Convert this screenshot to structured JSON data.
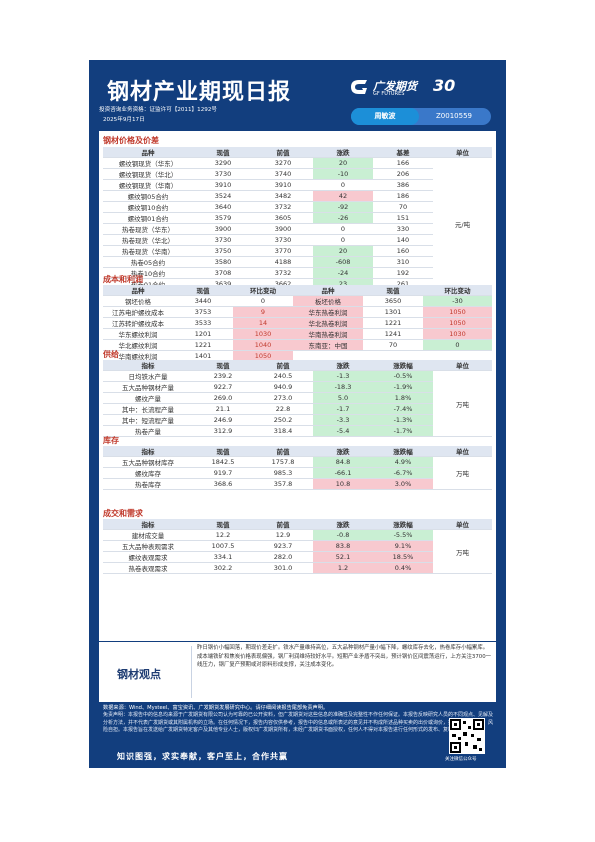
{
  "header": {
    "title": "钢材产业期现日报",
    "license_line": "投资咨询业务资格：证监许可【2011】1292号",
    "date": "2025年9月17日",
    "logo_cn": "广发期货",
    "logo_en": "GF FUTURES",
    "logo_badge": "30",
    "analyst": "周敏波",
    "analyst_id": "Z0010559"
  },
  "sections": {
    "prices": "钢材价格及价差",
    "cost": "成本和利润",
    "supply": "供给",
    "inventory": "库存",
    "demand": "成交和需求"
  },
  "prices": {
    "headers": [
      "品种",
      "现值",
      "前值",
      "涨跌",
      "基差",
      "单位"
    ],
    "unit": "元/吨",
    "rows": [
      {
        "name": "螺纹钢现货（华东）",
        "cur": "3290",
        "prev": "3270",
        "chg": "20",
        "basis": "166",
        "hl": "g"
      },
      {
        "name": "螺纹钢现货（华北）",
        "cur": "3730",
        "prev": "3740",
        "chg": "-10",
        "basis": "206",
        "hl": "g"
      },
      {
        "name": "螺纹钢现货（华南）",
        "cur": "3910",
        "prev": "3910",
        "chg": "0",
        "basis": "386",
        "hl": ""
      },
      {
        "name": "螺纹钢05合约",
        "cur": "3524",
        "prev": "3482",
        "chg": "42",
        "basis": "186",
        "hl": "r"
      },
      {
        "name": "螺纹钢10合约",
        "cur": "3640",
        "prev": "3732",
        "chg": "-92",
        "basis": "70",
        "hl": "g"
      },
      {
        "name": "螺纹钢01合约",
        "cur": "3579",
        "prev": "3605",
        "chg": "-26",
        "basis": "151",
        "hl": "g"
      },
      {
        "name": "热卷现货（华东）",
        "cur": "3900",
        "prev": "3900",
        "chg": "0",
        "basis": "330",
        "hl": ""
      },
      {
        "name": "热卷现货（华北）",
        "cur": "3730",
        "prev": "3730",
        "chg": "0",
        "basis": "140",
        "hl": ""
      },
      {
        "name": "热卷现货（华南）",
        "cur": "3750",
        "prev": "3770",
        "chg": "20",
        "basis": "160",
        "hl": "g"
      },
      {
        "name": "热卷05合约",
        "cur": "3580",
        "prev": "4188",
        "chg": "-608",
        "basis": "310",
        "hl": "g"
      },
      {
        "name": "热卷10合约",
        "cur": "3708",
        "prev": "3732",
        "chg": "-24",
        "basis": "192",
        "hl": "g"
      },
      {
        "name": "热卷01合约",
        "cur": "3639",
        "prev": "3662",
        "chg": "23",
        "basis": "261",
        "hl": "g"
      }
    ]
  },
  "cost": {
    "headers": [
      "品种",
      "现值",
      "环比变动",
      "品种",
      "现值",
      "环比变动"
    ],
    "rows": [
      {
        "a": "钢坯价格",
        "a_cur": "3440",
        "a_chg": "0",
        "a_hl": "",
        "b": "板坯价格",
        "b_cur": "3650",
        "b_chg": "-30",
        "b_hl": "g"
      },
      {
        "a": "江苏电炉螺纹成本",
        "a_cur": "3753",
        "a_chg": "9",
        "a_hl": "r",
        "b": "华东热卷利润",
        "b_cur": "1301",
        "b_chg": "1050",
        "b_hl": "r"
      },
      {
        "a": "江苏转炉螺纹成本",
        "a_cur": "3533",
        "a_chg": "14",
        "a_hl": "r",
        "b": "华北热卷利润",
        "b_cur": "1221",
        "b_chg": "1050",
        "b_hl": "r"
      },
      {
        "a": "华东螺纹利润",
        "a_cur": "1201",
        "a_chg": "1030",
        "a_hl": "r",
        "b": "华南热卷利润",
        "b_cur": "1241",
        "b_chg": "1030",
        "b_hl": "r"
      },
      {
        "a": "华北螺纹利润",
        "a_cur": "1221",
        "a_chg": "1040",
        "a_hl": "r",
        "b": "东南亚：中国",
        "b_cur": "70",
        "b_chg": "0",
        "b_hl": "g"
      },
      {
        "a": "华南螺纹利润",
        "a_cur": "1401",
        "a_chg": "1050",
        "a_hl": "r",
        "b": "",
        "b_cur": "",
        "b_chg": "",
        "b_hl": ""
      }
    ]
  },
  "supply": {
    "headers": [
      "指标",
      "现值",
      "前值",
      "涨跌",
      "涨跌幅",
      "单位"
    ],
    "unit": "万吨",
    "rows": [
      {
        "name": "日均铁水产量",
        "cur": "239.2",
        "prev": "240.5",
        "chg": "-1.3",
        "pct": "-0.5%"
      },
      {
        "name": "五大品种钢材产量",
        "cur": "922.7",
        "prev": "940.9",
        "chg": "-18.3",
        "pct": "-1.9%"
      },
      {
        "name": "螺纹产量",
        "cur": "269.0",
        "prev": "273.0",
        "chg": "5.0",
        "pct": "1.8%"
      },
      {
        "name": "其中：长流程产量",
        "cur": "21.1",
        "prev": "22.8",
        "chg": "-1.7",
        "pct": "-7.4%"
      },
      {
        "name": "其中：短流程产量",
        "cur": "246.9",
        "prev": "250.2",
        "chg": "-3.3",
        "pct": "-1.3%"
      },
      {
        "name": "热卷产量",
        "cur": "312.9",
        "prev": "318.4",
        "chg": "-5.4",
        "pct": "-1.7%"
      }
    ]
  },
  "inventory": {
    "headers": [
      "指标",
      "现值",
      "前值",
      "涨跌",
      "涨跌幅",
      "单位"
    ],
    "unit": "万吨",
    "rows": [
      {
        "name": "五大品种钢材库存",
        "cur": "1842.5",
        "prev": "1757.8",
        "chg": "84.8",
        "pct": "4.9%",
        "hl": "g"
      },
      {
        "name": "螺纹库存",
        "cur": "919.7",
        "prev": "985.3",
        "chg": "-66.1",
        "pct": "-6.7%",
        "hl": "g"
      },
      {
        "name": "热卷库存",
        "cur": "368.6",
        "prev": "357.8",
        "chg": "10.8",
        "pct": "3.0%",
        "hl": "r"
      }
    ]
  },
  "demand": {
    "headers": [
      "指标",
      "现值",
      "前值",
      "涨跌",
      "涨跌幅",
      "单位"
    ],
    "unit": "万吨",
    "rows": [
      {
        "name": "建材成交量",
        "cur": "12.2",
        "prev": "12.9",
        "chg": "-0.8",
        "pct": "-5.5%",
        "hl": "g"
      },
      {
        "name": "五大品种表观需求",
        "cur": "1007.5",
        "prev": "923.7",
        "chg": "83.8",
        "pct": "9.1%",
        "hl": "r"
      },
      {
        "name": "螺纹表观需求",
        "cur": "334.1",
        "prev": "282.0",
        "chg": "52.1",
        "pct": "18.5%",
        "hl": "r"
      },
      {
        "name": "热卷表观需求",
        "cur": "302.2",
        "prev": "301.0",
        "chg": "1.2",
        "pct": "0.4%",
        "hl": "r"
      }
    ]
  },
  "view": {
    "label": "钢材观点",
    "text": "昨日钢价小幅回落，期现价差走扩。铁水产量维持高位，五大品种钢材产量小幅下降，螺纹库存去化，热卷库存小幅累库。成本端铁矿和焦炭价格表现偏强，钢厂利润维持较好水平。短期产业矛盾不突出，预计钢价区间震荡运行，上方关注3700一线压力，钢厂复产预期或对原料形成支撑，关注成本变化。"
  },
  "footer": {
    "source": "数据来源：Wind、Mysteel、富宝资讯、广发期货发展研究中心。请仔细阅读报告尾部免责声明。",
    "disclaimer": "免责声明：本报告中的信息均来源于广发期货有限公司认为可靠的已公开资料，但广发期货对这些信息的准确性及完整性不作任何保证。本报告反映研究人员的不同观点、见解及分析方法，并不代表广发期货或其附属机构的立场。在任何情况下，报告内容仅供参考，报告中的信息或所表达的意见并不构成所述品种买卖的出价或询价，投资者据此投资，风险自担。本报告旨在发送给广发期货特定客户及其他专业人士，版权归广发期货所有，未经广发期货书面授权，任何人不得对本报告进行任何形式的发布、复制。",
    "slogan": "知识图强，求实奉献，客户至上，合作共赢",
    "qr_caption": "关注微信公众号"
  }
}
